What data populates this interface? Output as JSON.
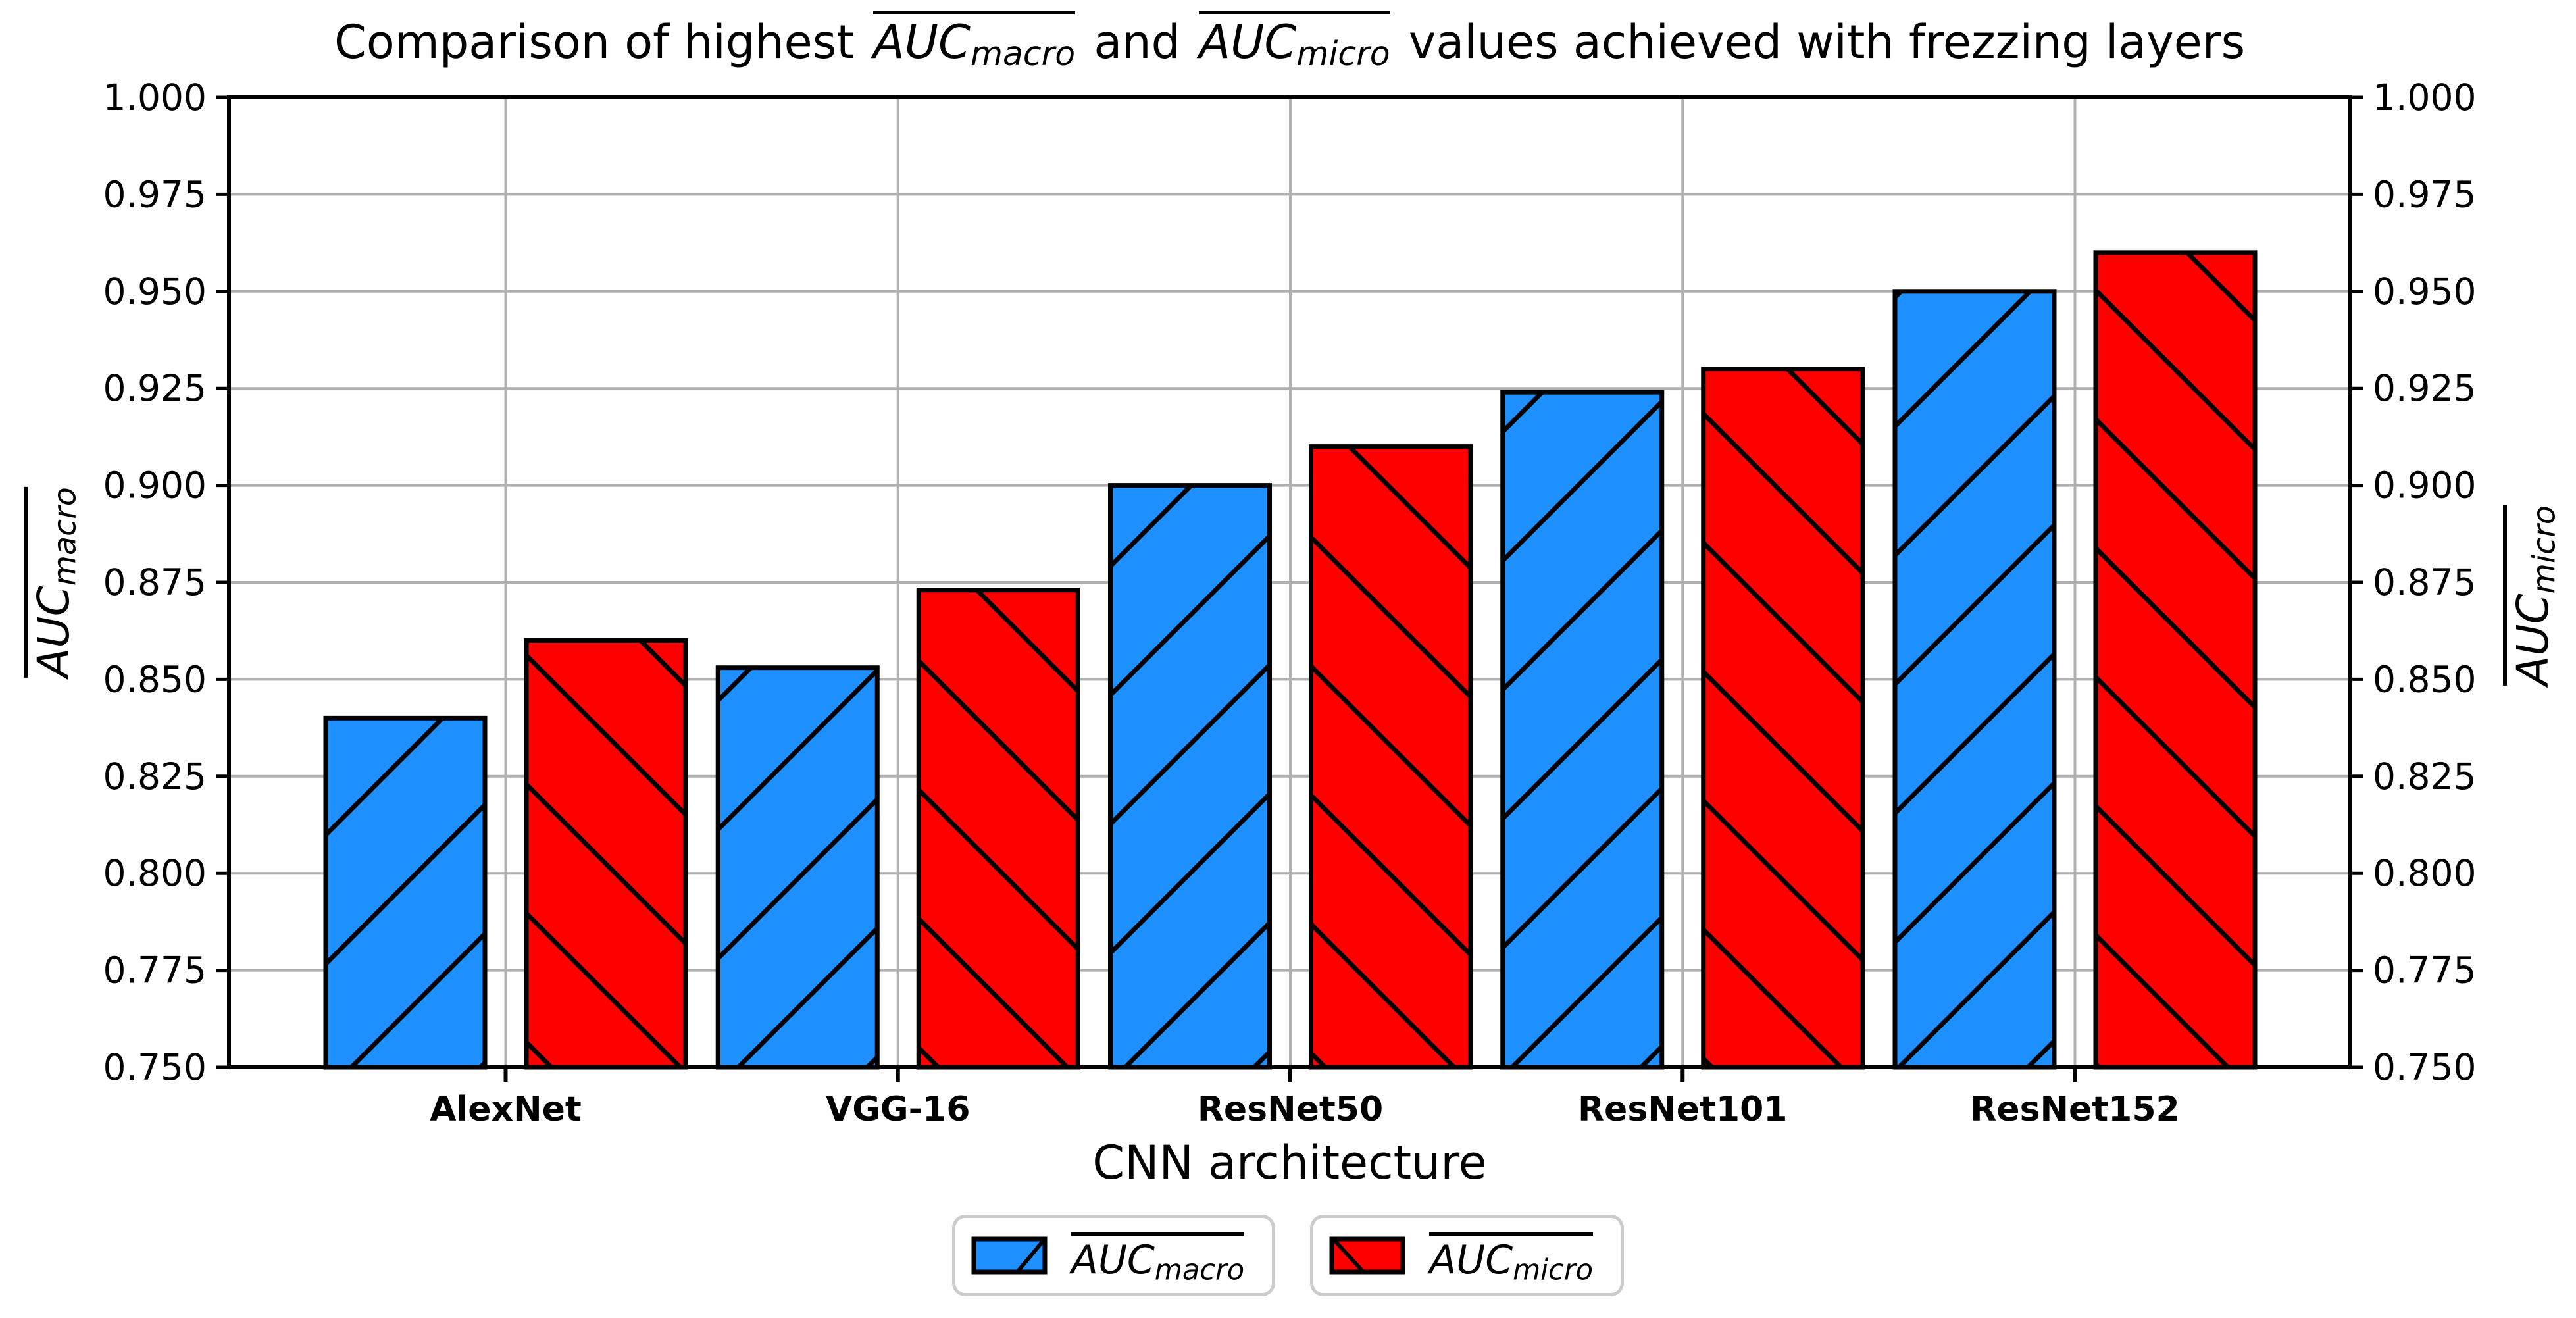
{
  "figure": {
    "background": "#ffffff",
    "title_parts": {
      "prefix": "Comparison of highest ",
      "math1": {
        "base": "AUC",
        "sub": "macro"
      },
      "mid": " and ",
      "math2": {
        "base": "AUC",
        "sub": "micro"
      },
      "suffix": " values achieved with frezzing layers"
    }
  },
  "chart_data": {
    "type": "bar",
    "title": "Comparison of highest AUC_macro and AUC_micro values achieved with frezzing layers",
    "categories": [
      "AlexNet",
      "VGG-16",
      "ResNet50",
      "ResNet101",
      "ResNet152"
    ],
    "series": [
      {
        "name": "AUC_macro",
        "label_base": "AUC",
        "label_sub": "macro",
        "color": "#1E90FF",
        "hatch": "/",
        "values": [
          0.84,
          0.853,
          0.9,
          0.924,
          0.95
        ]
      },
      {
        "name": "AUC_micro",
        "label_base": "AUC",
        "label_sub": "micro",
        "color": "#FF0000",
        "hatch": "\\",
        "values": [
          0.86,
          0.873,
          0.91,
          0.93,
          0.96
        ]
      }
    ],
    "xlabel": "CNN architecture",
    "ylabel_left": "AUC_macro",
    "ylabel_right": "AUC_micro",
    "ylim": [
      0.75,
      1.0
    ],
    "ytick_step": 0.025,
    "yticks": [
      "1.000",
      "0.975",
      "0.950",
      "0.925",
      "0.900",
      "0.875",
      "0.850",
      "0.825",
      "0.800",
      "0.775",
      "0.750"
    ],
    "grid": true,
    "grid_color": "#b0b0b0",
    "bar_edge_color": "#000000",
    "legend_position": "bottom"
  }
}
